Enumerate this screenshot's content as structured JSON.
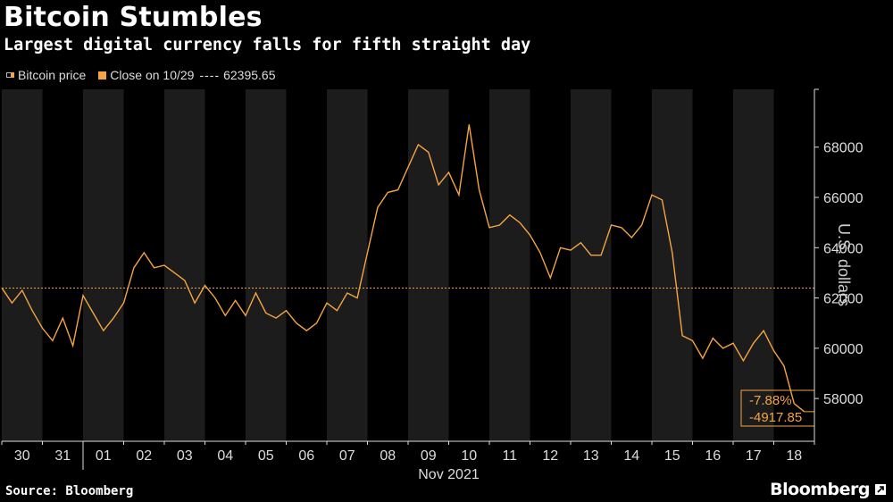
{
  "header": {
    "title": "Bitcoin Stumbles",
    "subtitle": "Largest digital currency falls for fifth straight day"
  },
  "legend": {
    "price_label": "Bitcoin price",
    "close_label": "Close on 10/29",
    "close_dashes": "----",
    "close_value": "62395.65"
  },
  "footer": {
    "source": "Source: Bloomberg",
    "brand": "Bloomberg"
  },
  "colors": {
    "line": "#f5a442",
    "background": "#000000",
    "band": "#1c1c1c"
  },
  "chart_data": {
    "type": "line",
    "title": "Bitcoin Stumbles",
    "subtitle": "Largest digital currency falls for fifth straight day",
    "ylabel": "U.S. dollars",
    "xlabel": "Nov 2021",
    "x_tick_labels": [
      "30",
      "31",
      "01",
      "02",
      "03",
      "04",
      "05",
      "06",
      "07",
      "08",
      "09",
      "10",
      "11",
      "12",
      "13",
      "14",
      "15",
      "16",
      "17",
      "18"
    ],
    "y_ticks": [
      58000,
      60000,
      62000,
      64000,
      66000,
      68000
    ],
    "y_tick_labels": [
      "58000",
      "60000",
      "62000",
      "64000",
      "66000",
      "68000"
    ],
    "ylim": [
      56300,
      70300
    ],
    "xlim": [
      "2021-10-30",
      "2021-11-19"
    ],
    "grid": false,
    "legend_position": "top-left",
    "reference_line": {
      "label": "Close on 10/29",
      "value": 62395.65
    },
    "annotations": [
      {
        "text": "-7.88%"
      },
      {
        "text": "-4917.85"
      }
    ],
    "series": [
      {
        "name": "Bitcoin price",
        "x": [
          "2021-10-30 00:00",
          "2021-10-30 06:00",
          "2021-10-30 12:00",
          "2021-10-30 18:00",
          "2021-10-31 00:00",
          "2021-10-31 06:00",
          "2021-10-31 12:00",
          "2021-10-31 18:00",
          "2021-11-01 00:00",
          "2021-11-01 06:00",
          "2021-11-01 12:00",
          "2021-11-01 18:00",
          "2021-11-02 00:00",
          "2021-11-02 06:00",
          "2021-11-02 12:00",
          "2021-11-02 18:00",
          "2021-11-03 00:00",
          "2021-11-03 06:00",
          "2021-11-03 12:00",
          "2021-11-03 18:00",
          "2021-11-04 00:00",
          "2021-11-04 06:00",
          "2021-11-04 12:00",
          "2021-11-04 18:00",
          "2021-11-05 00:00",
          "2021-11-05 06:00",
          "2021-11-05 12:00",
          "2021-11-05 18:00",
          "2021-11-06 00:00",
          "2021-11-06 06:00",
          "2021-11-06 12:00",
          "2021-11-06 18:00",
          "2021-11-07 00:00",
          "2021-11-07 06:00",
          "2021-11-07 12:00",
          "2021-11-07 18:00",
          "2021-11-08 00:00",
          "2021-11-08 06:00",
          "2021-11-08 12:00",
          "2021-11-08 18:00",
          "2021-11-09 00:00",
          "2021-11-09 06:00",
          "2021-11-09 12:00",
          "2021-11-09 18:00",
          "2021-11-10 00:00",
          "2021-11-10 06:00",
          "2021-11-10 12:00",
          "2021-11-10 18:00",
          "2021-11-11 00:00",
          "2021-11-11 06:00",
          "2021-11-11 12:00",
          "2021-11-11 18:00",
          "2021-11-12 00:00",
          "2021-11-12 06:00",
          "2021-11-12 12:00",
          "2021-11-12 18:00",
          "2021-11-13 00:00",
          "2021-11-13 06:00",
          "2021-11-13 12:00",
          "2021-11-13 18:00",
          "2021-11-14 00:00",
          "2021-11-14 06:00",
          "2021-11-14 12:00",
          "2021-11-14 18:00",
          "2021-11-15 00:00",
          "2021-11-15 06:00",
          "2021-11-15 12:00",
          "2021-11-15 18:00",
          "2021-11-16 00:00",
          "2021-11-16 06:00",
          "2021-11-16 12:00",
          "2021-11-16 18:00",
          "2021-11-17 00:00",
          "2021-11-17 06:00",
          "2021-11-17 12:00",
          "2021-11-17 18:00",
          "2021-11-18 00:00",
          "2021-11-18 06:00",
          "2021-11-18 12:00",
          "2021-11-18 18:00"
        ],
        "values": [
          62400,
          61800,
          62300,
          61500,
          60800,
          60300,
          61200,
          60100,
          62100,
          61400,
          60700,
          61200,
          61800,
          63200,
          63800,
          63200,
          63300,
          63000,
          62700,
          61800,
          62500,
          62000,
          61300,
          61900,
          61300,
          62200,
          61400,
          61200,
          61500,
          61000,
          60700,
          61000,
          61800,
          61500,
          62200,
          62000,
          63800,
          65600,
          66200,
          66300,
          67200,
          68100,
          67800,
          66500,
          67000,
          66100,
          68900,
          66300,
          64800,
          64900,
          65300,
          65000,
          64500,
          63800,
          62800,
          64000,
          63900,
          64200,
          63700,
          63700,
          64900,
          64800,
          64400,
          64900,
          66100,
          65900,
          63800,
          60500,
          60300,
          59600,
          60400,
          60000,
          60200,
          59500,
          60200,
          60700,
          59900,
          59300,
          57800,
          57478
        ]
      }
    ]
  }
}
